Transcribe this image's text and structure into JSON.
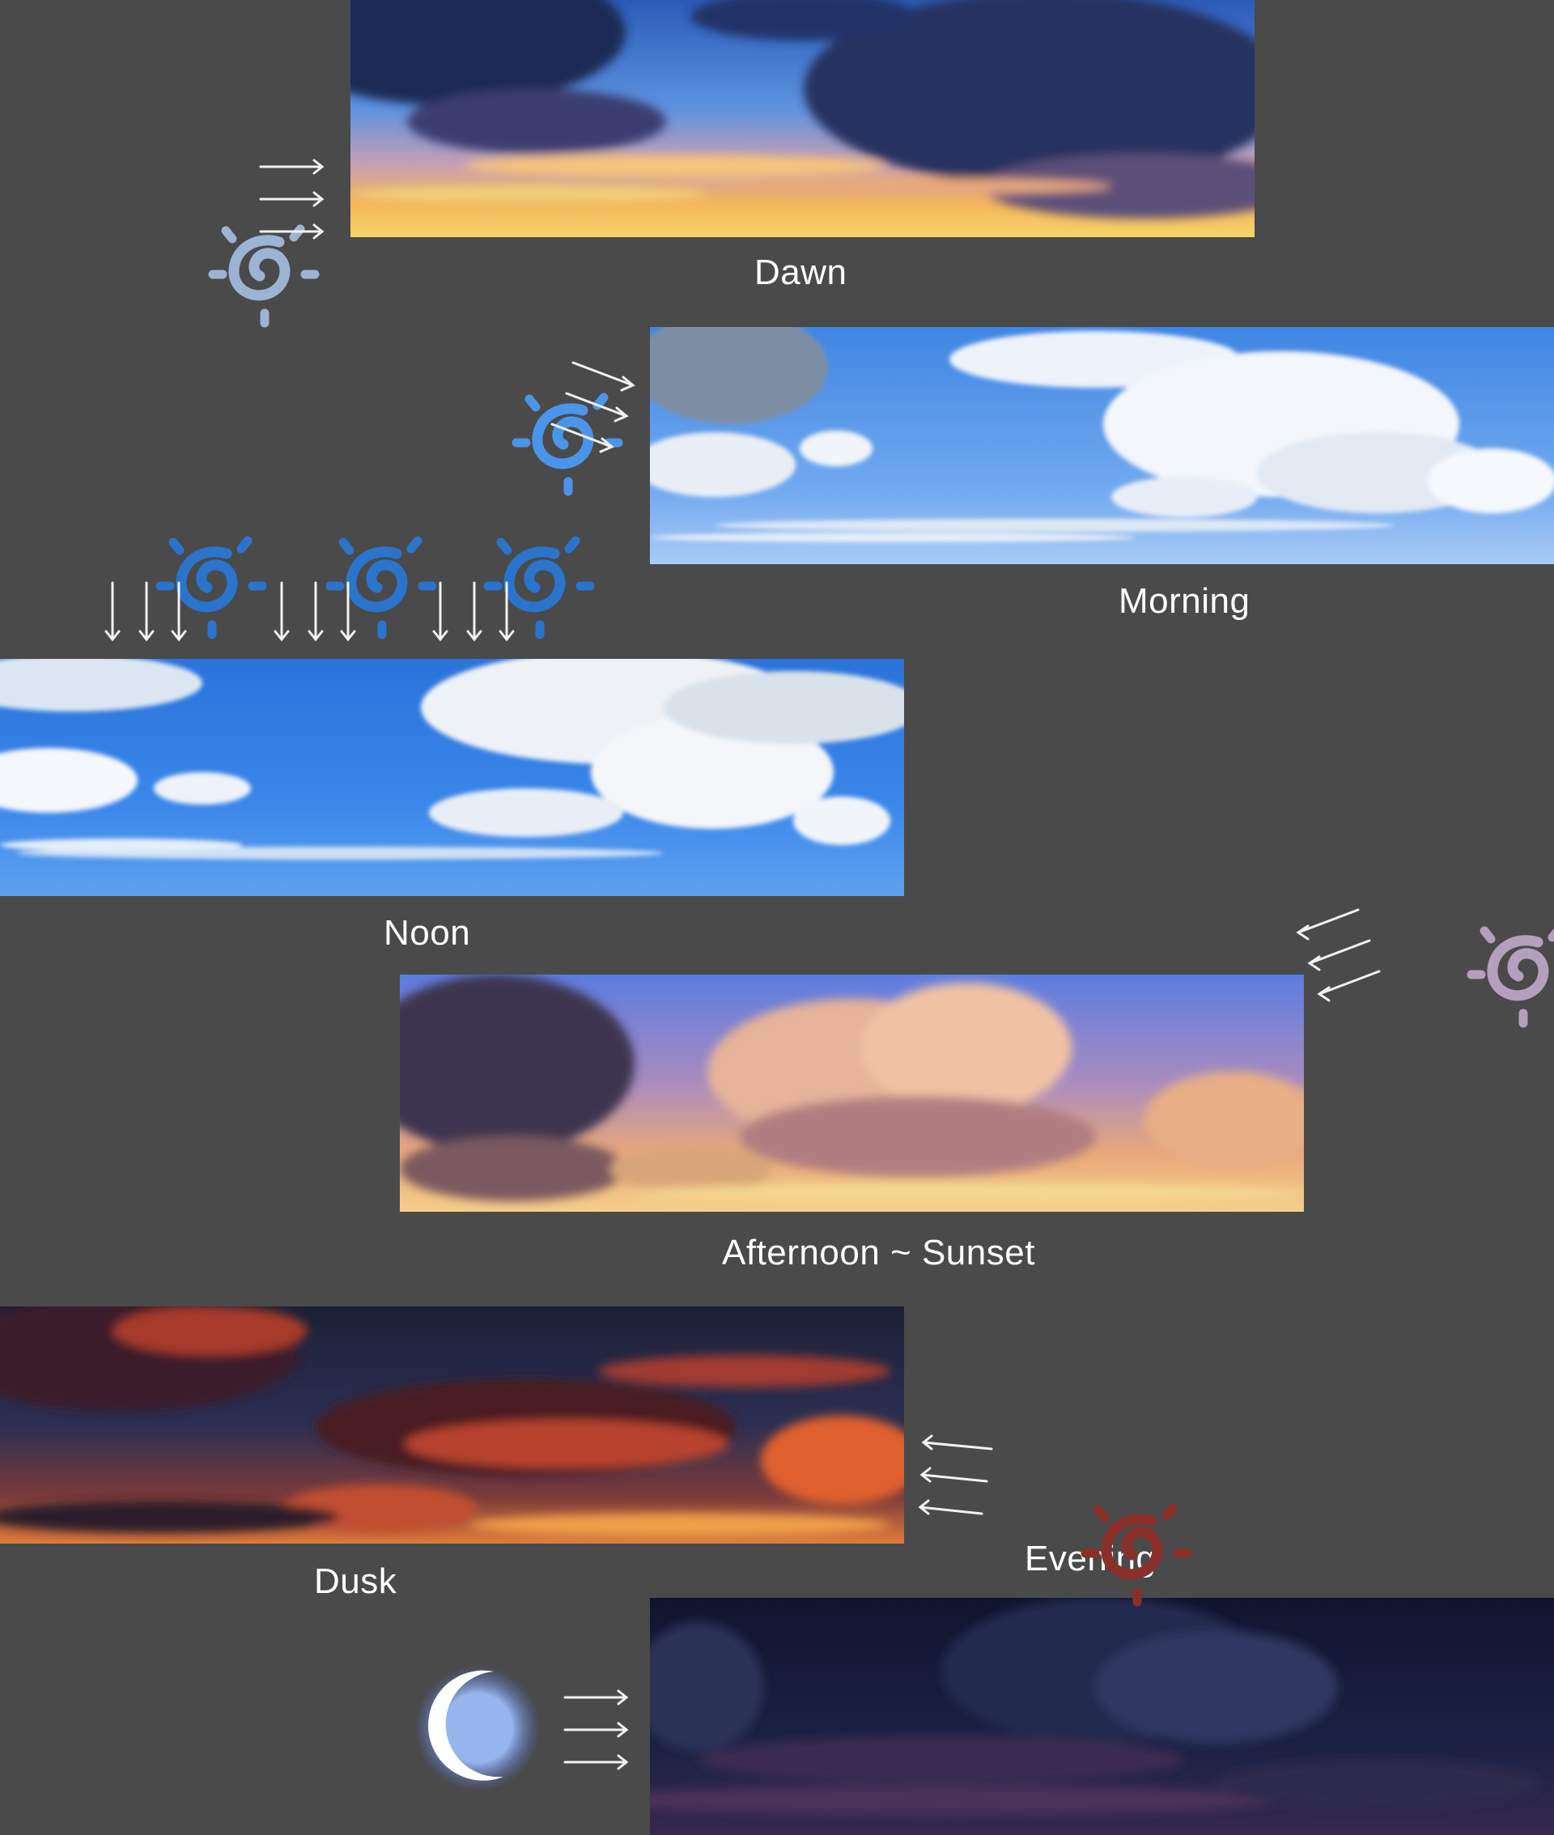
{
  "panels": [
    {
      "id": "dawn",
      "label": "Dawn"
    },
    {
      "id": "morning",
      "label": "Morning"
    },
    {
      "id": "noon",
      "label": "Noon"
    },
    {
      "id": "afternoon",
      "label": "Afternoon ~ Sunset"
    },
    {
      "id": "dusk",
      "label": "Dusk"
    },
    {
      "id": "evening",
      "label": "Evening"
    }
  ],
  "icons": {
    "sun": "sun-icon",
    "moon": "crescent-moon-icon",
    "light_rays": "arrow-icon"
  },
  "colors": {
    "background": "#4a4a4a",
    "label_text": "#ffffff",
    "arrow": "#f2f2f2",
    "sun_noon": "#2a74cc",
    "sun_dawn_top": "#3d88e0",
    "sun_dawn_bottom": "#e9b27a",
    "sun_evening_top": "#3a2f4a",
    "sun_evening_bottom": "#d03a1e",
    "moon": "#ffffff",
    "moon_glow": "#7fa9ff"
  }
}
